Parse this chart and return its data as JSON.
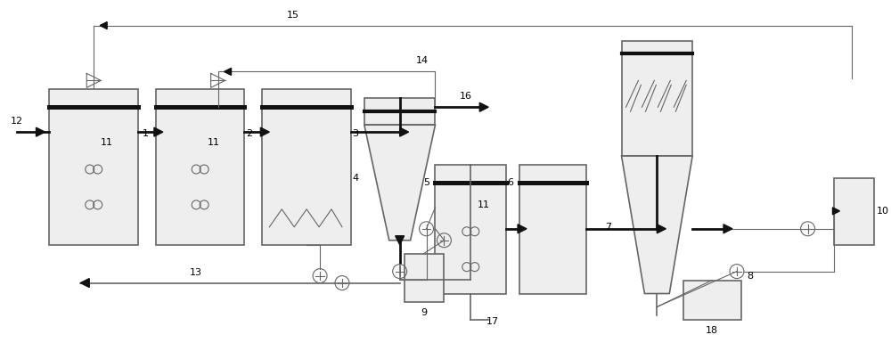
{
  "bg_color": "#ffffff",
  "line_color": "#666666",
  "thick_line_color": "#111111",
  "box_fill": "#eeeeee",
  "figsize": [
    10.0,
    3.94
  ],
  "dpi": 100
}
